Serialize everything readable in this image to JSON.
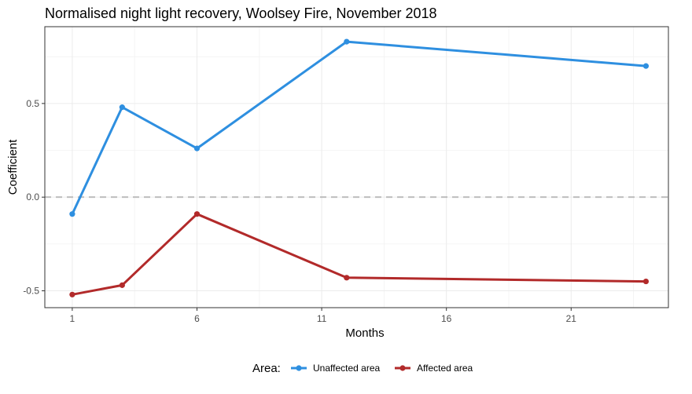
{
  "chart_data": {
    "type": "line",
    "title": "Normalised night light recovery, Woolsey Fire, November 2018",
    "xlabel": "Months",
    "ylabel": "Coefficient",
    "xlim": [
      -0.1,
      24.9
    ],
    "ylim": [
      -0.59,
      0.91
    ],
    "x_ticks": [
      1,
      6,
      11,
      16,
      21
    ],
    "y_ticks": [
      -0.5,
      0.0,
      0.5
    ],
    "y_tick_labels": [
      "-0.5",
      "0.0",
      "0.5"
    ],
    "x_minor_gridlines": [
      3.5,
      8.5,
      13.5,
      18.5,
      23.5
    ],
    "y_minor_gridlines": [
      -0.25,
      0.25,
      0.75
    ],
    "reference_line": {
      "y": 0,
      "style": "dashed",
      "color": "#bdbdbd"
    },
    "grid": true,
    "legend": {
      "title": "Area:",
      "placement": "bottom",
      "entries": [
        "Unaffected area",
        "Affected area"
      ]
    },
    "series": [
      {
        "name": "Unaffected area",
        "color": "#2e8fe0",
        "x": [
          1,
          3,
          6,
          12,
          24
        ],
        "y": [
          -0.09,
          0.48,
          0.26,
          0.83,
          0.7
        ]
      },
      {
        "name": "Affected area",
        "color": "#b22a2a",
        "x": [
          1,
          3,
          6,
          12,
          24
        ],
        "y": [
          -0.52,
          -0.47,
          -0.09,
          -0.43,
          -0.45
        ]
      }
    ]
  }
}
